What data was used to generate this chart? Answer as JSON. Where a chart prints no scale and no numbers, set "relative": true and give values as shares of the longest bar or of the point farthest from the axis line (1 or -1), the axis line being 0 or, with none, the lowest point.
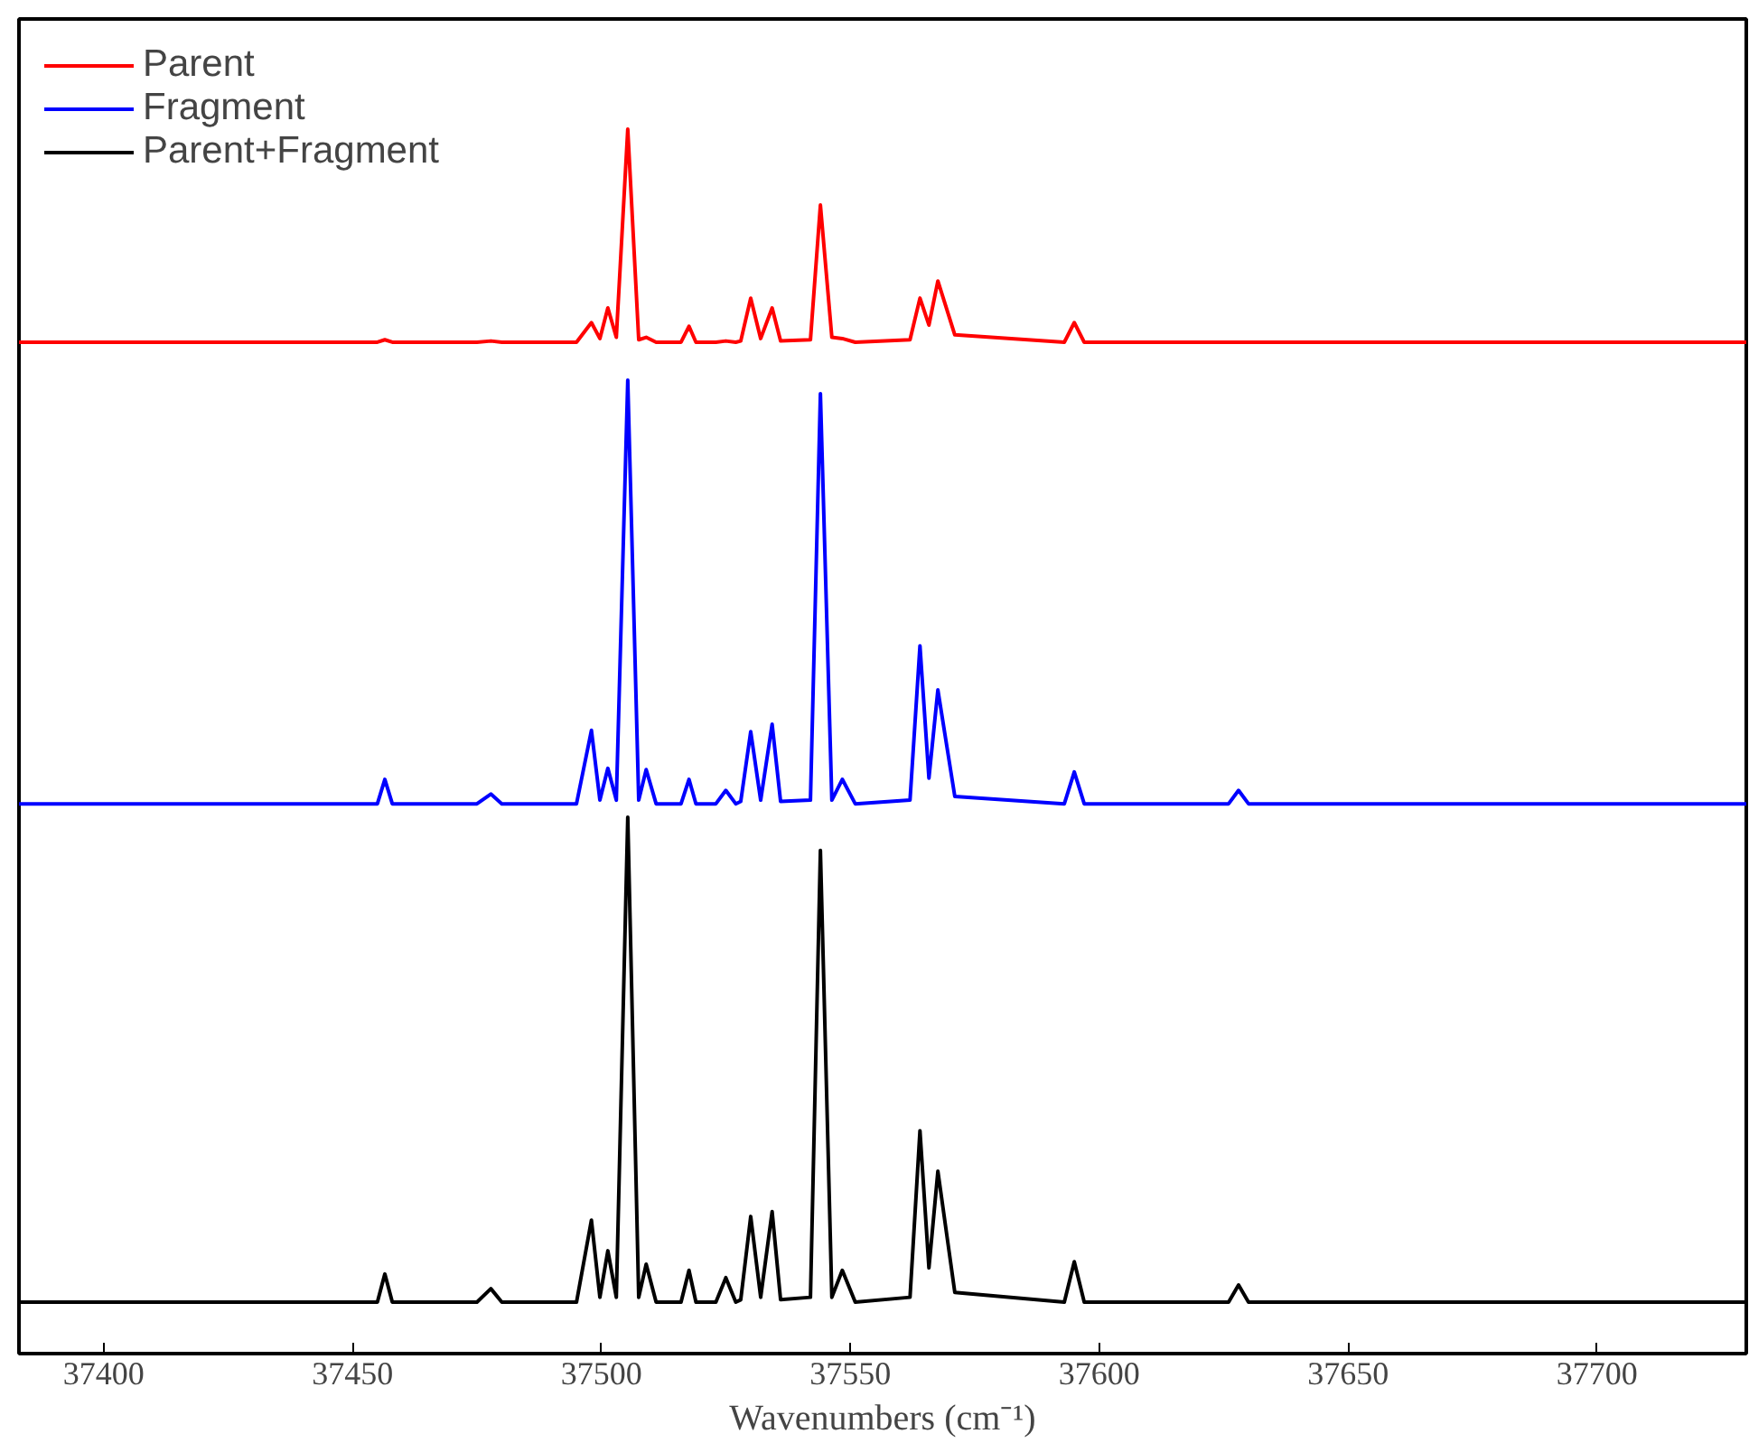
{
  "chart_data": {
    "type": "line",
    "relative": true,
    "xlabel": "Wavenumbers (cm⁻¹)",
    "xlim": [
      37383,
      37730
    ],
    "xticks": [
      37400,
      37450,
      37500,
      37550,
      37600,
      37650,
      37700
    ],
    "tick_labels": "x",
    "grid": false,
    "legend": "top left",
    "line_style": "solid",
    "marker": "none",
    "x": [
      37383,
      37450,
      37455,
      37456.5,
      37458,
      37475,
      37477.8,
      37480,
      37495,
      37498,
      37499.7,
      37501.3,
      37503,
      37505.3,
      37507.5,
      37509,
      37511,
      37516,
      37517.6,
      37519,
      37523,
      37525,
      37527,
      37528,
      37530,
      37532,
      37534.3,
      37536,
      37542,
      37544,
      37546.3,
      37548.4,
      37551,
      37562,
      37564,
      37565.8,
      37567.6,
      37571,
      37593,
      37595,
      37597,
      37626,
      37628,
      37630,
      37730
    ],
    "series": [
      {
        "name": "Parent",
        "color": "#ff0000",
        "values": [
          0.826,
          0.826,
          0.826,
          0.828,
          0.826,
          0.826,
          0.827,
          0.826,
          0.826,
          0.842,
          0.829,
          0.854,
          0.83,
          1,
          0.828,
          0.83,
          0.826,
          0.826,
          0.839,
          0.826,
          0.826,
          0.827,
          0.826,
          0.827,
          0.862,
          0.829,
          0.854,
          0.827,
          0.828,
          0.938,
          0.83,
          0.829,
          0.826,
          0.828,
          0.862,
          0.84,
          0.876,
          0.832,
          0.826,
          0.842,
          0.826,
          0.826,
          0.826,
          0.826,
          0.826
        ]
      },
      {
        "name": "Fragment",
        "color": "#0000ff",
        "values": [
          0.449,
          0.449,
          0.449,
          0.469,
          0.449,
          0.449,
          0.457,
          0.449,
          0.449,
          0.509,
          0.452,
          0.478,
          0.452,
          0.795,
          0.452,
          0.477,
          0.449,
          0.449,
          0.469,
          0.449,
          0.449,
          0.46,
          0.449,
          0.451,
          0.508,
          0.452,
          0.514,
          0.451,
          0.452,
          0.784,
          0.452,
          0.469,
          0.449,
          0.452,
          0.578,
          0.47,
          0.542,
          0.455,
          0.449,
          0.475,
          0.449,
          0.449,
          0.46,
          0.449,
          0.449
        ]
      },
      {
        "name": "Parent+Fragment",
        "color": "#000000",
        "values": [
          0.042,
          0.042,
          0.042,
          0.065,
          0.042,
          0.042,
          0.053,
          0.042,
          0.042,
          0.109,
          0.046,
          0.084,
          0.046,
          0.438,
          0.046,
          0.073,
          0.042,
          0.042,
          0.068,
          0.042,
          0.042,
          0.062,
          0.042,
          0.044,
          0.112,
          0.046,
          0.116,
          0.044,
          0.046,
          0.411,
          0.046,
          0.068,
          0.042,
          0.046,
          0.182,
          0.07,
          0.149,
          0.05,
          0.042,
          0.075,
          0.042,
          0.042,
          0.056,
          0.042,
          0.042
        ]
      }
    ]
  }
}
